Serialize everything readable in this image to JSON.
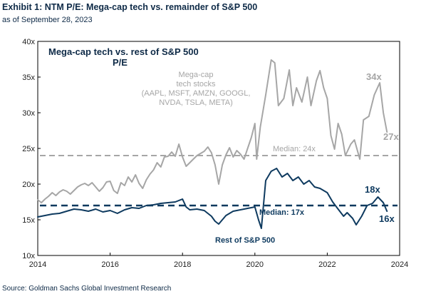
{
  "header": {
    "title": "Exhibit 1: NTM P/E: Mega-cap tech vs. remainder of S&P 500",
    "subtitle": "as of September 28, 2023"
  },
  "footer": {
    "source": "Source: Goldman Sachs Global Investment Research"
  },
  "colors": {
    "mega_cap": "#a6a6a6",
    "rest": "#0e3a5f",
    "text_dark": "#0e2a47"
  },
  "chart_data": {
    "type": "line",
    "title": "Mega-cap tech vs. rest of S&P 500",
    "subtitle": "P/E",
    "xlim": [
      2014,
      2024
    ],
    "ylim": [
      10,
      40
    ],
    "x_ticks": [
      {
        "value": 2014,
        "label": "2014"
      },
      {
        "value": 2016,
        "label": "2016"
      },
      {
        "value": 2018,
        "label": "2018"
      },
      {
        "value": 2020,
        "label": "2020"
      },
      {
        "value": 2022,
        "label": "2022"
      },
      {
        "value": 2024,
        "label": "2024"
      }
    ],
    "y_ticks": [
      {
        "value": 10,
        "label": "10x"
      },
      {
        "value": 15,
        "label": "15x"
      },
      {
        "value": 20,
        "label": "20x"
      },
      {
        "value": 25,
        "label": "25x"
      },
      {
        "value": 30,
        "label": "30x"
      },
      {
        "value": 35,
        "label": "35x"
      },
      {
        "value": 40,
        "label": "40x"
      }
    ],
    "series": [
      {
        "key": "mega",
        "color": "#a6a6a6",
        "points": [
          [
            2014.0,
            17.8
          ],
          [
            2014.1,
            17.4
          ],
          [
            2014.2,
            17.9
          ],
          [
            2014.3,
            18.3
          ],
          [
            2014.4,
            18.8
          ],
          [
            2014.5,
            18.4
          ],
          [
            2014.6,
            18.9
          ],
          [
            2014.7,
            19.2
          ],
          [
            2014.8,
            19.0
          ],
          [
            2014.9,
            18.6
          ],
          [
            2015.0,
            19.1
          ],
          [
            2015.1,
            19.6
          ],
          [
            2015.2,
            19.9
          ],
          [
            2015.3,
            20.1
          ],
          [
            2015.4,
            19.8
          ],
          [
            2015.5,
            20.2
          ],
          [
            2015.6,
            19.6
          ],
          [
            2015.7,
            19.0
          ],
          [
            2015.8,
            19.5
          ],
          [
            2015.9,
            20.3
          ],
          [
            2016.0,
            20.4
          ],
          [
            2016.1,
            19.1
          ],
          [
            2016.2,
            18.7
          ],
          [
            2016.3,
            20.2
          ],
          [
            2016.4,
            19.8
          ],
          [
            2016.5,
            21.0
          ],
          [
            2016.6,
            20.3
          ],
          [
            2016.7,
            21.3
          ],
          [
            2016.8,
            20.1
          ],
          [
            2016.9,
            19.4
          ],
          [
            2017.0,
            20.6
          ],
          [
            2017.1,
            21.4
          ],
          [
            2017.2,
            22.0
          ],
          [
            2017.3,
            23.0
          ],
          [
            2017.4,
            22.4
          ],
          [
            2017.5,
            23.8
          ],
          [
            2017.6,
            23.9
          ],
          [
            2017.7,
            24.5
          ],
          [
            2017.8,
            23.9
          ],
          [
            2017.9,
            25.6
          ],
          [
            2018.0,
            23.8
          ],
          [
            2018.1,
            22.5
          ],
          [
            2018.2,
            23.0
          ],
          [
            2018.3,
            23.5
          ],
          [
            2018.4,
            24.0
          ],
          [
            2018.5,
            24.3
          ],
          [
            2018.6,
            24.6
          ],
          [
            2018.7,
            25.2
          ],
          [
            2018.8,
            24.4
          ],
          [
            2018.9,
            22.7
          ],
          [
            2019.0,
            20.0
          ],
          [
            2019.1,
            22.7
          ],
          [
            2019.2,
            24.1
          ],
          [
            2019.3,
            25.1
          ],
          [
            2019.4,
            23.8
          ],
          [
            2019.5,
            24.7
          ],
          [
            2019.6,
            24.2
          ],
          [
            2019.7,
            23.5
          ],
          [
            2019.8,
            25.0
          ],
          [
            2019.9,
            26.5
          ],
          [
            2020.0,
            28.5
          ],
          [
            2020.05,
            23.5
          ],
          [
            2020.15,
            28.0
          ],
          [
            2020.3,
            32.5
          ],
          [
            2020.45,
            37.4
          ],
          [
            2020.55,
            37.0
          ],
          [
            2020.65,
            31.0
          ],
          [
            2020.8,
            32.0
          ],
          [
            2020.95,
            36.0
          ],
          [
            2021.05,
            31.0
          ],
          [
            2021.15,
            33.5
          ],
          [
            2021.3,
            31.5
          ],
          [
            2021.45,
            35.0
          ],
          [
            2021.55,
            31.0
          ],
          [
            2021.7,
            34.5
          ],
          [
            2021.8,
            35.9
          ],
          [
            2021.9,
            33.5
          ],
          [
            2022.0,
            32.0
          ],
          [
            2022.1,
            26.8
          ],
          [
            2022.2,
            24.9
          ],
          [
            2022.3,
            28.5
          ],
          [
            2022.4,
            27.0
          ],
          [
            2022.5,
            24.0
          ],
          [
            2022.65,
            25.6
          ],
          [
            2022.75,
            26.2
          ],
          [
            2022.9,
            23.5
          ],
          [
            2023.0,
            29.0
          ],
          [
            2023.15,
            29.5
          ],
          [
            2023.3,
            32.5
          ],
          [
            2023.45,
            34.2
          ],
          [
            2023.55,
            30.0
          ],
          [
            2023.65,
            27.3
          ]
        ]
      },
      {
        "key": "rest",
        "color": "#0e3a5f",
        "points": [
          [
            2014.0,
            15.4
          ],
          [
            2014.2,
            15.6
          ],
          [
            2014.4,
            15.8
          ],
          [
            2014.6,
            15.9
          ],
          [
            2014.8,
            16.2
          ],
          [
            2015.0,
            16.5
          ],
          [
            2015.2,
            16.4
          ],
          [
            2015.4,
            16.2
          ],
          [
            2015.6,
            16.5
          ],
          [
            2015.8,
            16.1
          ],
          [
            2016.0,
            16.3
          ],
          [
            2016.2,
            15.9
          ],
          [
            2016.4,
            16.4
          ],
          [
            2016.6,
            16.7
          ],
          [
            2016.8,
            16.6
          ],
          [
            2017.0,
            17.0
          ],
          [
            2017.2,
            17.1
          ],
          [
            2017.4,
            17.3
          ],
          [
            2017.6,
            17.4
          ],
          [
            2017.8,
            17.5
          ],
          [
            2018.0,
            17.9
          ],
          [
            2018.1,
            16.8
          ],
          [
            2018.2,
            16.4
          ],
          [
            2018.4,
            16.5
          ],
          [
            2018.6,
            16.3
          ],
          [
            2018.8,
            15.5
          ],
          [
            2018.9,
            14.8
          ],
          [
            2019.0,
            14.4
          ],
          [
            2019.2,
            15.6
          ],
          [
            2019.4,
            16.2
          ],
          [
            2019.6,
            16.4
          ],
          [
            2019.8,
            16.6
          ],
          [
            2020.0,
            16.8
          ],
          [
            2020.1,
            15.0
          ],
          [
            2020.18,
            13.8
          ],
          [
            2020.3,
            20.5
          ],
          [
            2020.45,
            21.8
          ],
          [
            2020.6,
            22.2
          ],
          [
            2020.75,
            21.0
          ],
          [
            2020.9,
            21.5
          ],
          [
            2021.05,
            20.5
          ],
          [
            2021.2,
            21.0
          ],
          [
            2021.35,
            20.0
          ],
          [
            2021.5,
            20.5
          ],
          [
            2021.65,
            19.6
          ],
          [
            2021.8,
            19.4
          ],
          [
            2022.0,
            18.8
          ],
          [
            2022.15,
            17.5
          ],
          [
            2022.3,
            16.5
          ],
          [
            2022.45,
            15.5
          ],
          [
            2022.55,
            16.0
          ],
          [
            2022.7,
            15.2
          ],
          [
            2022.8,
            14.3
          ],
          [
            2022.95,
            15.5
          ],
          [
            2023.1,
            17.0
          ],
          [
            2023.25,
            17.3
          ],
          [
            2023.4,
            18.2
          ],
          [
            2023.55,
            17.4
          ],
          [
            2023.65,
            16.2
          ]
        ]
      }
    ],
    "median_lines": [
      {
        "series": "mega",
        "value": 24,
        "label": "Median: 24x",
        "color": "#a6a6a6"
      },
      {
        "series": "rest",
        "value": 17,
        "label": "Median: 17x",
        "color": "#0e3a5f"
      }
    ],
    "annotations": {
      "mega_name": [
        "Mega-cap",
        "tech stocks",
        "(AAPL, MSFT, AMZN, GOOGL,",
        "NVDA, TSLA, META)"
      ],
      "rest_name": "Rest of S&P 500",
      "mega_peak": "34x",
      "mega_last": "27x",
      "rest_peak": "18x",
      "rest_last": "16x"
    }
  }
}
